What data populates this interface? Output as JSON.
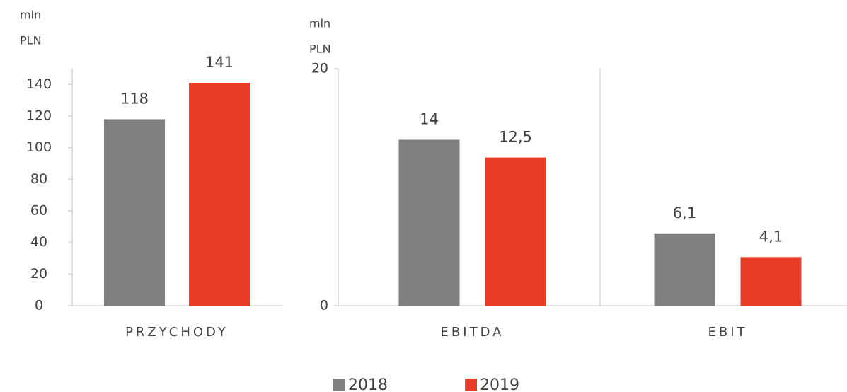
{
  "chart_data": [
    {
      "type": "bar",
      "unit_lines": [
        "mln",
        "PLN"
      ],
      "categories": [
        "PRZYCHODY"
      ],
      "series": [
        {
          "color": "#7f7f7f",
          "values": [
            118
          ]
        },
        {
          "color": "#e63c28",
          "values": [
            141
          ]
        }
      ],
      "ylim": [
        0,
        150
      ],
      "yticks": [
        0,
        20,
        40,
        60,
        80,
        100,
        120,
        140
      ]
    },
    {
      "type": "bar",
      "unit_lines": [
        "mln",
        "PLN"
      ],
      "categories": [
        "EBITDA",
        "EBIT"
      ],
      "series": [
        {
          "name": "2018",
          "color": "#7f7f7f",
          "values": [
            14,
            6.1
          ],
          "value_labels": [
            "14",
            "6,1"
          ]
        },
        {
          "name": "2019",
          "color": "#e63c28",
          "values": [
            12.5,
            4.1
          ],
          "value_labels": [
            "12,5",
            "4,1"
          ]
        }
      ],
      "ylim": [
        0,
        20
      ],
      "yticks": [
        0,
        20
      ]
    }
  ]
}
